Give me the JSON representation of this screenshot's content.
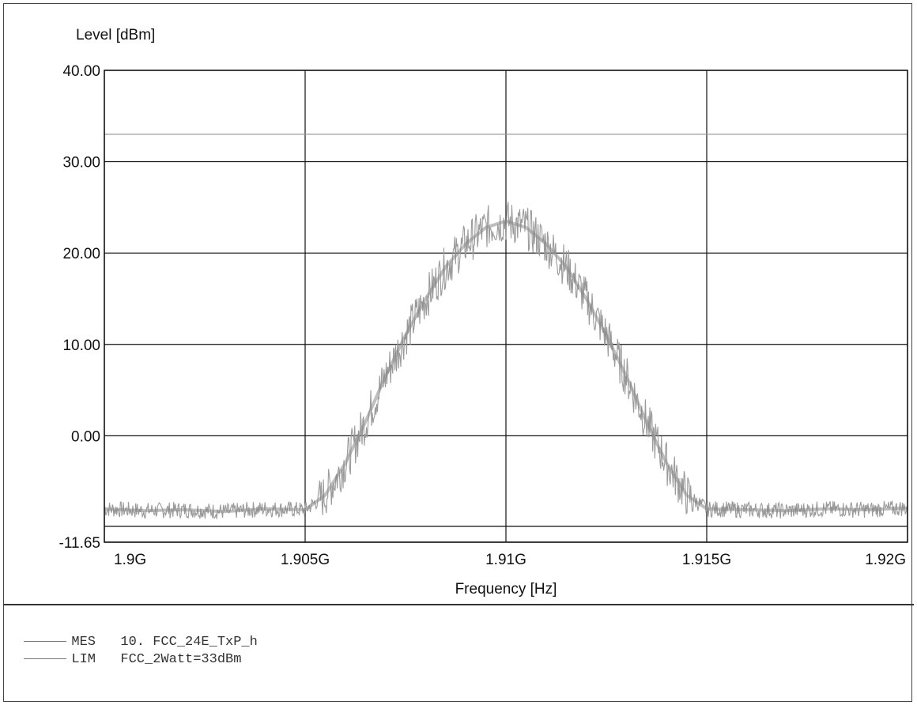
{
  "chart_data": {
    "type": "line",
    "ylabel": "Level [dBm]",
    "xlabel": "Frequency [Hz]",
    "xlim": [
      1900000000,
      1920000000
    ],
    "ylim": [
      -11.65,
      40
    ],
    "x_ticks": [
      {
        "value": 1900000000,
        "label": "1.9G"
      },
      {
        "value": 1905000000,
        "label": "1.905G"
      },
      {
        "value": 1910000000,
        "label": "1.91G"
      },
      {
        "value": 1915000000,
        "label": "1.915G"
      },
      {
        "value": 1920000000,
        "label": "1.92G"
      }
    ],
    "y_ticks": [
      {
        "value": 40,
        "label": "40.00"
      },
      {
        "value": 30,
        "label": "30.00"
      },
      {
        "value": 20,
        "label": "20.00"
      },
      {
        "value": 10,
        "label": "10.00"
      },
      {
        "value": 0,
        "label": "0.00"
      },
      {
        "value": -11.65,
        "label": "-11.65"
      }
    ],
    "grid": true,
    "series": [
      {
        "name": "MES",
        "color": "#9a9a9a",
        "x": [
          1900000000,
          1901000000,
          1902000000,
          1903000000,
          1904000000,
          1905000000,
          1905500000,
          1906000000,
          1906500000,
          1907000000,
          1907500000,
          1908000000,
          1908500000,
          1909000000,
          1909500000,
          1910000000,
          1910500000,
          1911000000,
          1911500000,
          1912000000,
          1912500000,
          1913000000,
          1913500000,
          1914000000,
          1914500000,
          1915000000,
          1916000000,
          1917000000,
          1918000000,
          1919000000,
          1920000000
        ],
        "y": [
          -8.0,
          -8.2,
          -8.1,
          -8.3,
          -8.0,
          -8.1,
          -6.5,
          -3.0,
          1.5,
          6.5,
          11.0,
          15.0,
          18.5,
          21.0,
          22.8,
          23.5,
          22.8,
          21.0,
          18.5,
          15.0,
          11.0,
          6.5,
          1.5,
          -3.0,
          -6.5,
          -8.0,
          -8.1,
          -8.2,
          -8.0,
          -8.1,
          -7.9
        ]
      },
      {
        "name": "LIM",
        "color": "#9a9a9a",
        "x": [
          1900000000,
          1920000000
        ],
        "y": [
          33,
          33
        ]
      }
    ]
  },
  "legend": [
    {
      "tag": "MES",
      "text": "10. FCC_24E_TxP_h"
    },
    {
      "tag": "LIM",
      "text": "FCC_2Watt=33dBm"
    }
  ]
}
